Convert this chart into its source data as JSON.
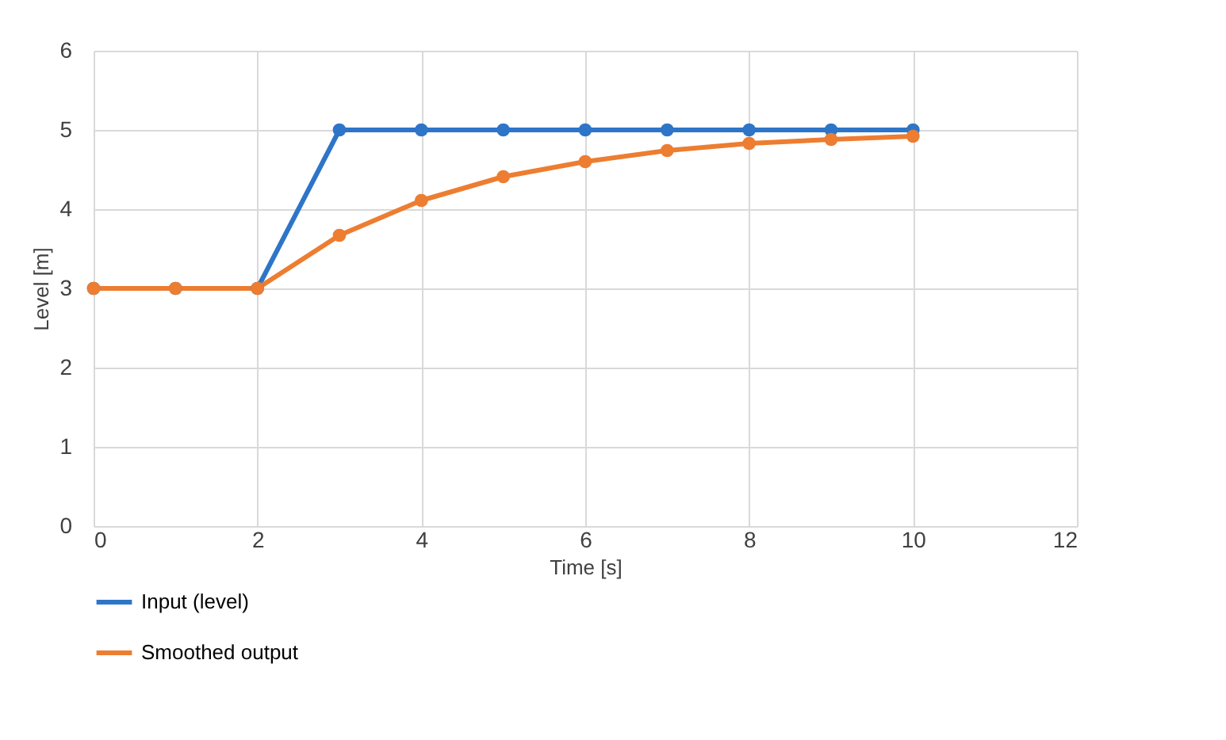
{
  "chart_data": {
    "type": "line",
    "x": [
      0,
      1,
      2,
      3,
      4,
      5,
      6,
      7,
      8,
      9,
      10
    ],
    "series": [
      {
        "name": "Input (level)",
        "color": "#2e75c8",
        "values": [
          3,
          3,
          3,
          5,
          5,
          5,
          5,
          5,
          5,
          5,
          5
        ]
      },
      {
        "name": "Smoothed output",
        "color": "#ed7d31",
        "values": [
          3,
          3,
          3,
          3.67,
          4.11,
          4.41,
          4.6,
          4.74,
          4.83,
          4.88,
          4.92
        ]
      }
    ],
    "xlabel": "Time [s]",
    "ylabel": "Level [m]",
    "xlim": [
      0,
      12
    ],
    "xticks": [
      0,
      2,
      4,
      6,
      8,
      10,
      12
    ],
    "ylim": [
      0,
      6
    ],
    "yticks": [
      0,
      1,
      2,
      3,
      4,
      5,
      6
    ],
    "grid": true,
    "legend": "bottom left",
    "marker": "circle",
    "line_style": "solid"
  }
}
